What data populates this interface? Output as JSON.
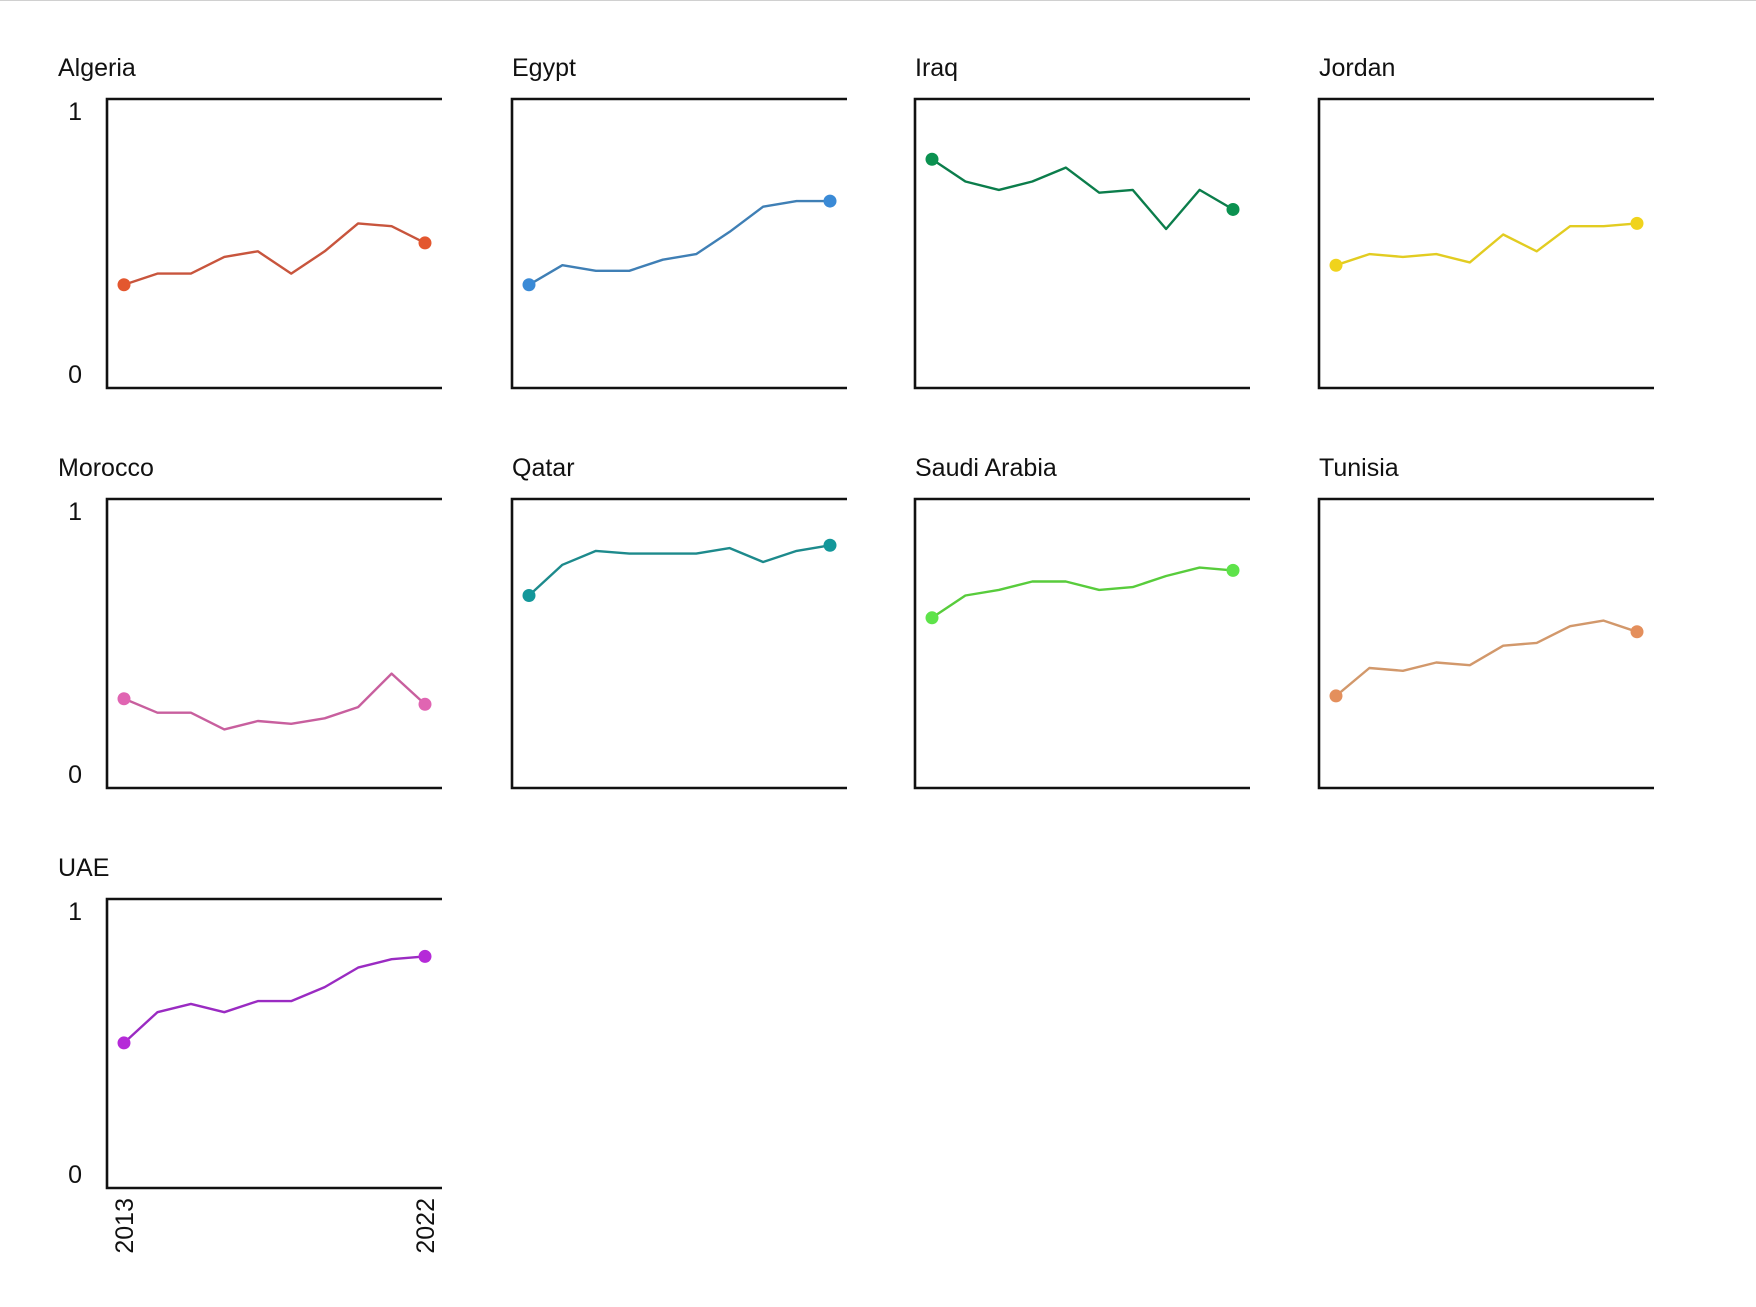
{
  "chart_data": {
    "type": "line",
    "layout": "small-multiples",
    "x": [
      2013,
      2014,
      2015,
      2016,
      2017,
      2018,
      2019,
      2020,
      2021,
      2022
    ],
    "x_tick_labels": [
      "2013",
      "2022"
    ],
    "ylim": [
      0,
      1
    ],
    "y_tick_labels": [
      "0",
      "1"
    ],
    "grid": false,
    "panels": [
      {
        "title": "Algeria",
        "color": "#c8553d",
        "marker_color": "#e3572f",
        "values": [
          0.37,
          0.41,
          0.41,
          0.47,
          0.49,
          0.41,
          0.49,
          0.59,
          0.58,
          0.52
        ]
      },
      {
        "title": "Egypt",
        "color": "#3f7fb5",
        "marker_color": "#3a8ad6",
        "values": [
          0.37,
          0.44,
          0.42,
          0.42,
          0.46,
          0.48,
          0.56,
          0.65,
          0.67,
          0.67
        ]
      },
      {
        "title": "Iraq",
        "color": "#0b7d4b",
        "marker_color": "#0b9150",
        "values": [
          0.82,
          0.74,
          0.71,
          0.74,
          0.79,
          0.7,
          0.71,
          0.57,
          0.71,
          0.64
        ]
      },
      {
        "title": "Jordan",
        "color": "#e2cc21",
        "marker_color": "#f0d31c",
        "values": [
          0.44,
          0.48,
          0.47,
          0.48,
          0.45,
          0.55,
          0.49,
          0.58,
          0.58,
          0.59
        ]
      },
      {
        "title": "Morocco",
        "color": "#c85f9e",
        "marker_color": "#e065b2",
        "values": [
          0.32,
          0.27,
          0.27,
          0.21,
          0.24,
          0.23,
          0.25,
          0.29,
          0.41,
          0.3
        ]
      },
      {
        "title": "Qatar",
        "color": "#1d8a8c",
        "marker_color": "#13979a",
        "values": [
          0.69,
          0.8,
          0.85,
          0.84,
          0.84,
          0.84,
          0.86,
          0.81,
          0.85,
          0.87
        ]
      },
      {
        "title": "Saudi Arabia",
        "color": "#58cc3c",
        "marker_color": "#5ee34a",
        "values": [
          0.61,
          0.69,
          0.71,
          0.74,
          0.74,
          0.71,
          0.72,
          0.76,
          0.79,
          0.78
        ]
      },
      {
        "title": "Tunisia",
        "color": "#d2986b",
        "marker_color": "#e48f5c",
        "values": [
          0.33,
          0.43,
          0.42,
          0.45,
          0.44,
          0.51,
          0.52,
          0.58,
          0.6,
          0.56
        ]
      },
      {
        "title": "UAE",
        "color": "#9a2bc2",
        "marker_color": "#b52ad8",
        "values": [
          0.52,
          0.63,
          0.66,
          0.63,
          0.67,
          0.67,
          0.72,
          0.79,
          0.82,
          0.83
        ]
      }
    ]
  }
}
